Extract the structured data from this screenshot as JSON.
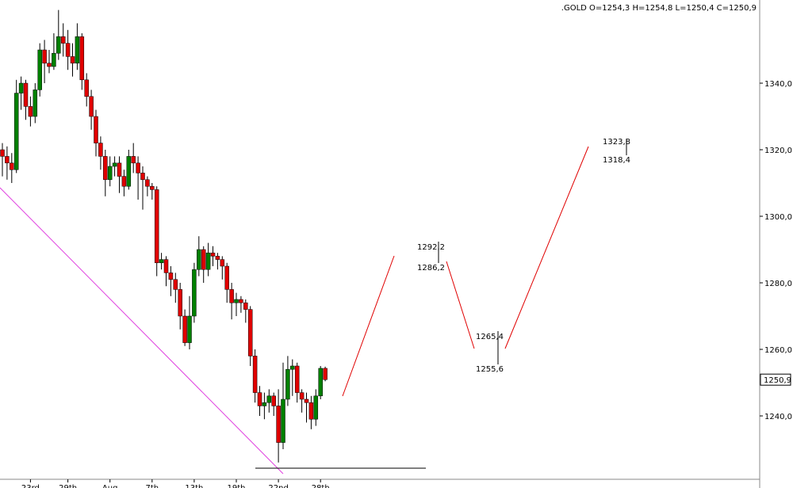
{
  "chart_data": {
    "type": "candlestick",
    "header": ".GOLD O=1254,3 H=1254,8 L=1250,4 C=1250,9",
    "last_price_label": "1250,9",
    "up_color": "#008000",
    "down_color": "#e00000",
    "categories": [
      null,
      null,
      null,
      null,
      null,
      null,
      "23rd",
      null,
      null,
      null,
      null,
      null,
      null,
      null,
      "29th",
      null,
      null,
      null,
      null,
      null,
      null,
      null,
      null,
      "Aug",
      null,
      null,
      null,
      null,
      null,
      null,
      null,
      null,
      "7th",
      null,
      null,
      null,
      null,
      null,
      null,
      null,
      null,
      "13th",
      null,
      null,
      null,
      null,
      null,
      null,
      null,
      null,
      "19th",
      null,
      null,
      null,
      null,
      null,
      null,
      null,
      null,
      "22nd",
      null,
      null,
      null,
      null,
      null,
      null,
      null,
      null,
      "28th",
      null
    ],
    "open": [
      1320,
      1318,
      1316,
      1314,
      1337,
      1340,
      1333,
      1330,
      1338,
      1350,
      1346,
      1345,
      1349,
      1354,
      1352,
      1348,
      1346,
      1354,
      1341,
      1336,
      1330,
      1322,
      1318,
      1311,
      1315,
      1316,
      1312,
      1309,
      1318,
      1316,
      1313,
      1311,
      1309,
      1308,
      1286,
      1287,
      1283,
      1281,
      1278,
      1270,
      1262,
      1270,
      1284,
      1290,
      1284,
      1289,
      1288,
      1287,
      1285,
      1278,
      1274,
      1275,
      1274,
      1272,
      1258,
      1247,
      1243,
      1244,
      1246,
      1243,
      1232,
      1245,
      1254,
      1255,
      1247,
      1245,
      1244,
      1239,
      1246,
      1254.3
    ],
    "high": [
      1322,
      1321,
      1319,
      1341,
      1342,
      1341,
      1336,
      1340,
      1352,
      1353,
      1350,
      1355,
      1362,
      1358,
      1356,
      1352,
      1358,
      1355,
      1343,
      1338,
      1332,
      1324,
      1320,
      1318,
      1318,
      1318,
      1314,
      1320,
      1322,
      1318,
      1315,
      1312,
      1310,
      1309,
      1289,
      1288,
      1285,
      1283,
      1280,
      1272,
      1276,
      1286,
      1294,
      1291,
      1292,
      1291,
      1289,
      1288,
      1286,
      1280,
      1277,
      1276,
      1275,
      1273,
      1260,
      1249,
      1247,
      1248,
      1247,
      1248,
      1256,
      1258,
      1257,
      1256,
      1248,
      1247,
      1246,
      1248,
      1255,
      1254.8
    ],
    "low": [
      1312,
      1311,
      1310,
      1313,
      1332,
      1329,
      1327,
      1328,
      1336,
      1340,
      1343,
      1344,
      1347,
      1348,
      1344,
      1342,
      1344,
      1338,
      1333,
      1326,
      1318,
      1314,
      1306,
      1309,
      1312,
      1307,
      1306,
      1308,
      1313,
      1305,
      1302,
      1306,
      1305,
      1282,
      1284,
      1279,
      1276,
      1274,
      1266,
      1261,
      1260,
      1268,
      1282,
      1280,
      1282,
      1285,
      1284,
      1281,
      1274,
      1269,
      1270,
      1271,
      1268,
      1255,
      1244,
      1240,
      1239,
      1241,
      1240,
      1226,
      1230,
      1243,
      1246,
      1244,
      1241,
      1238,
      1236,
      1237,
      1245,
      1250.4
    ],
    "close": [
      1318,
      1316,
      1314,
      1337,
      1340,
      1333,
      1330,
      1338,
      1350,
      1346,
      1345,
      1349,
      1354,
      1352,
      1348,
      1346,
      1354,
      1341,
      1336,
      1330,
      1322,
      1318,
      1311,
      1315,
      1316,
      1312,
      1309,
      1318,
      1316,
      1313,
      1311,
      1309,
      1308,
      1286,
      1287,
      1283,
      1281,
      1278,
      1270,
      1262,
      1270,
      1284,
      1290,
      1284,
      1289,
      1288,
      1287,
      1285,
      1278,
      1274,
      1275,
      1274,
      1272,
      1258,
      1247,
      1243,
      1244,
      1246,
      1243,
      1232,
      1245,
      1254,
      1255,
      1247,
      1245,
      1244,
      1239,
      1246,
      1254.3,
      1250.9
    ],
    "ylim": [
      1220.95,
      1365
    ],
    "yticks": [
      {
        "value": 1240,
        "label": "1240,0"
      },
      {
        "value": 1260,
        "label": "1260,0"
      },
      {
        "value": 1280,
        "label": "1280,0"
      },
      {
        "value": 1300,
        "label": "1300,0"
      },
      {
        "value": 1320,
        "label": "1320,0"
      },
      {
        "value": 1340,
        "label": "1340,0"
      }
    ],
    "annotations": [
      "1292,2",
      "1286,2",
      "1265,4",
      "1255,6",
      "1323,8",
      "1318,4"
    ]
  }
}
